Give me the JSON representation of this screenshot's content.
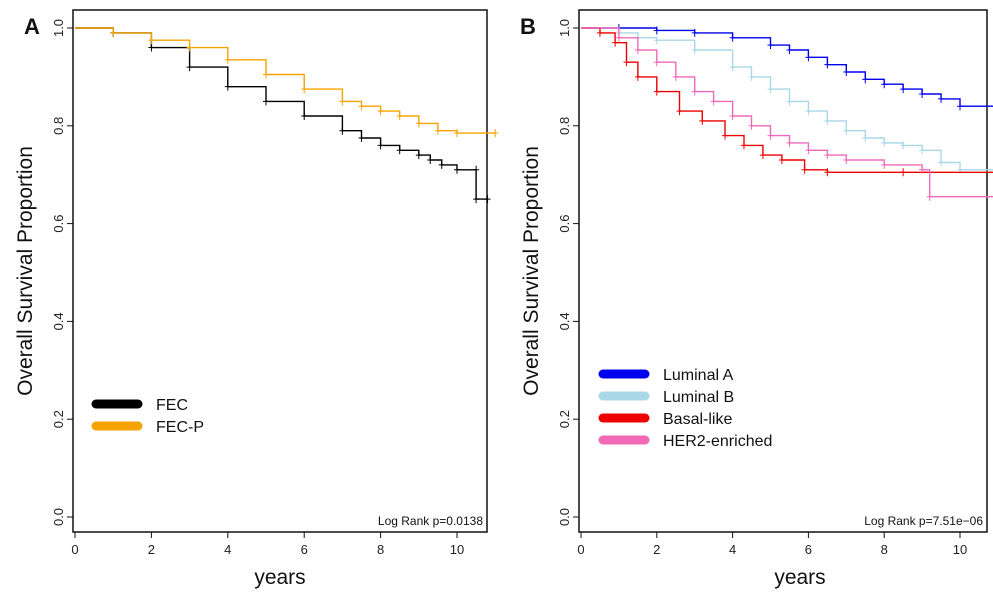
{
  "chart_data": [
    {
      "type": "line",
      "panel": "A",
      "annotation": "Log Rank p=0.0138",
      "xlabel": "years",
      "ylabel": "Overall Survival Proportion",
      "xlim": [
        0,
        11.5
      ],
      "ylim": [
        0,
        1.03
      ],
      "xticks": [
        0,
        2,
        4,
        6,
        8,
        10
      ],
      "yticks": [
        "0.0",
        "0.2",
        "0.4",
        "0.6",
        "0.8",
        "1.0"
      ],
      "legend_position": "left-lower",
      "series": [
        {
          "name": "FEC",
          "color": "#000000",
          "x": [
            0,
            1,
            2,
            3,
            4,
            5,
            6,
            7,
            7.5,
            8,
            8.5,
            9,
            9.3,
            9.6,
            10,
            10.5,
            10.5,
            10.8
          ],
          "y": [
            1.0,
            0.99,
            0.96,
            0.92,
            0.88,
            0.85,
            0.82,
            0.79,
            0.775,
            0.76,
            0.75,
            0.74,
            0.73,
            0.72,
            0.71,
            0.71,
            0.65,
            0.65
          ]
        },
        {
          "name": "FEC-P",
          "color": "#F5A300",
          "x": [
            0,
            1,
            2,
            3,
            4,
            5,
            6,
            7,
            7.5,
            8,
            8.5,
            9,
            9.5,
            10,
            11
          ],
          "y": [
            1.0,
            0.99,
            0.975,
            0.96,
            0.935,
            0.905,
            0.875,
            0.85,
            0.84,
            0.83,
            0.82,
            0.805,
            0.79,
            0.785,
            0.785
          ]
        }
      ]
    },
    {
      "type": "line",
      "panel": "B",
      "annotation": "Log Rank p=7.51e−06",
      "xlabel": "years",
      "ylabel": "Overall Survival Proportion",
      "xlim": [
        0,
        11.5
      ],
      "ylim": [
        0,
        1.03
      ],
      "xticks": [
        0,
        2,
        4,
        6,
        8,
        10
      ],
      "yticks": [
        "0.0",
        "0.2",
        "0.4",
        "0.6",
        "0.8",
        "1.0"
      ],
      "legend_position": "left-lower",
      "series": [
        {
          "name": "Luminal A",
          "color": "#0000EE",
          "x": [
            0,
            1,
            2,
            3,
            4,
            5,
            5.5,
            6,
            6.5,
            7,
            7.5,
            8,
            8.5,
            9,
            9.5,
            10,
            11
          ],
          "y": [
            1.0,
            1.0,
            0.995,
            0.99,
            0.98,
            0.965,
            0.955,
            0.94,
            0.925,
            0.91,
            0.895,
            0.885,
            0.875,
            0.865,
            0.855,
            0.84,
            0.84
          ]
        },
        {
          "name": "Luminal B",
          "color": "#A8D8E8",
          "x": [
            0,
            1,
            1.5,
            2,
            3,
            4,
            4.5,
            5,
            5.5,
            6,
            6.5,
            7,
            7.5,
            8,
            8.5,
            9,
            9.5,
            10,
            11
          ],
          "y": [
            1.0,
            0.99,
            0.98,
            0.975,
            0.955,
            0.92,
            0.9,
            0.875,
            0.85,
            0.83,
            0.81,
            0.79,
            0.775,
            0.765,
            0.76,
            0.75,
            0.725,
            0.71,
            0.71
          ]
        },
        {
          "name": "Basal-like",
          "color": "#EE0000",
          "x": [
            0,
            0.5,
            0.9,
            1.2,
            1.5,
            2.0,
            2.6,
            3.2,
            3.8,
            4.3,
            4.8,
            5.3,
            5.9,
            6.5,
            8.5,
            11
          ],
          "y": [
            1.0,
            0.99,
            0.97,
            0.93,
            0.9,
            0.87,
            0.83,
            0.81,
            0.78,
            0.76,
            0.74,
            0.73,
            0.71,
            0.705,
            0.705,
            0.705
          ]
        },
        {
          "name": "HER2-enriched",
          "color": "#F06AB8",
          "x": [
            0,
            1,
            1.5,
            2,
            2.5,
            3,
            3.5,
            4,
            4.5,
            5,
            5.5,
            6,
            6.5,
            7,
            8,
            9,
            9.2,
            11
          ],
          "y": [
            1.0,
            0.98,
            0.955,
            0.93,
            0.9,
            0.87,
            0.85,
            0.82,
            0.8,
            0.78,
            0.765,
            0.75,
            0.74,
            0.73,
            0.72,
            0.71,
            0.655,
            0.655
          ]
        }
      ]
    }
  ]
}
